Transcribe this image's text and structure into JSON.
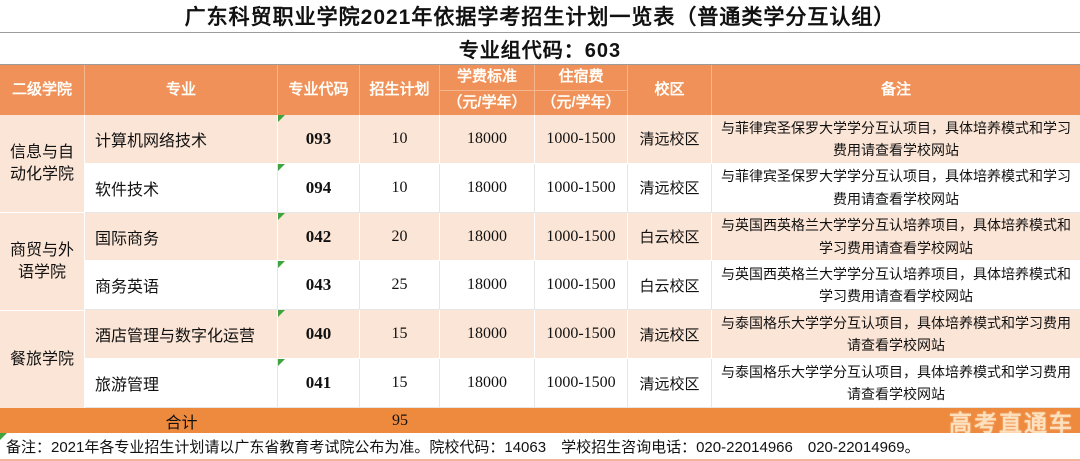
{
  "title": "广东科贸职业学院2021年依据学考招生计划一览表（普通类学分互认组）",
  "group_code_line": "专业组代码：603",
  "table": {
    "headers": {
      "college": "二级学院",
      "major": "专业",
      "code": "专业代码",
      "plan": "招生计划",
      "tuition_line1": "学费标准",
      "tuition_line2": "（元/学年）",
      "dorm_line1": "住宿费",
      "dorm_line2": "（元/学年）",
      "campus": "校区",
      "remark": "备注"
    },
    "colleges": [
      {
        "name": "信息与自动化学院"
      },
      {
        "name": "商贸与外语学院"
      },
      {
        "name": "餐旅学院"
      }
    ],
    "rows": [
      {
        "major": "计算机网络技术",
        "code": "093",
        "plan": "10",
        "tuition": "18000",
        "dorm": "1000-1500",
        "campus": "清远校区",
        "remark": "与菲律宾圣保罗大学学分互认项目，具体培养模式和学习费用请查看学校网站"
      },
      {
        "major": "软件技术",
        "code": "094",
        "plan": "10",
        "tuition": "18000",
        "dorm": "1000-1500",
        "campus": "清远校区",
        "remark": "与菲律宾圣保罗大学学分互认项目，具体培养模式和学习费用请查看学校网站"
      },
      {
        "major": "国际商务",
        "code": "042",
        "plan": "20",
        "tuition": "18000",
        "dorm": "1000-1500",
        "campus": "白云校区",
        "remark": "与英国西英格兰大学学分互认培养项目，具体培养模式和学习费用请查看学校网站"
      },
      {
        "major": "商务英语",
        "code": "043",
        "plan": "25",
        "tuition": "18000",
        "dorm": "1000-1500",
        "campus": "白云校区",
        "remark": "与英国西英格兰大学学分互认培养项目，具体培养模式和学习费用请查看学校网站"
      },
      {
        "major": "酒店管理与数字化运营",
        "code": "040",
        "plan": "15",
        "tuition": "18000",
        "dorm": "1000-1500",
        "campus": "清远校区",
        "remark": "与泰国格乐大学学分互认项目，具体培养模式和学习费用请查看学校网站"
      },
      {
        "major": "旅游管理",
        "code": "041",
        "plan": "15",
        "tuition": "18000",
        "dorm": "1000-1500",
        "campus": "清远校区",
        "remark": "与泰国格乐大学学分互认项目，具体培养模式和学习费用请查看学校网站"
      }
    ],
    "total": {
      "label": "合计",
      "plan_total": "95"
    }
  },
  "watermark": "高考直通车",
  "footnote": "备注：2021年各专业招生计划请以广东省教育考试院公布为准。院校代码：14063　学校招生咨询电话：020-22014966　020-22014969。",
  "colors": {
    "header_orange": "#F0915A",
    "total_bar_orange": "#EE8A3E",
    "row_peach": "#FBE5D6",
    "row_white": "#FFFFFF",
    "error_marker_green": "#3FA33F"
  }
}
